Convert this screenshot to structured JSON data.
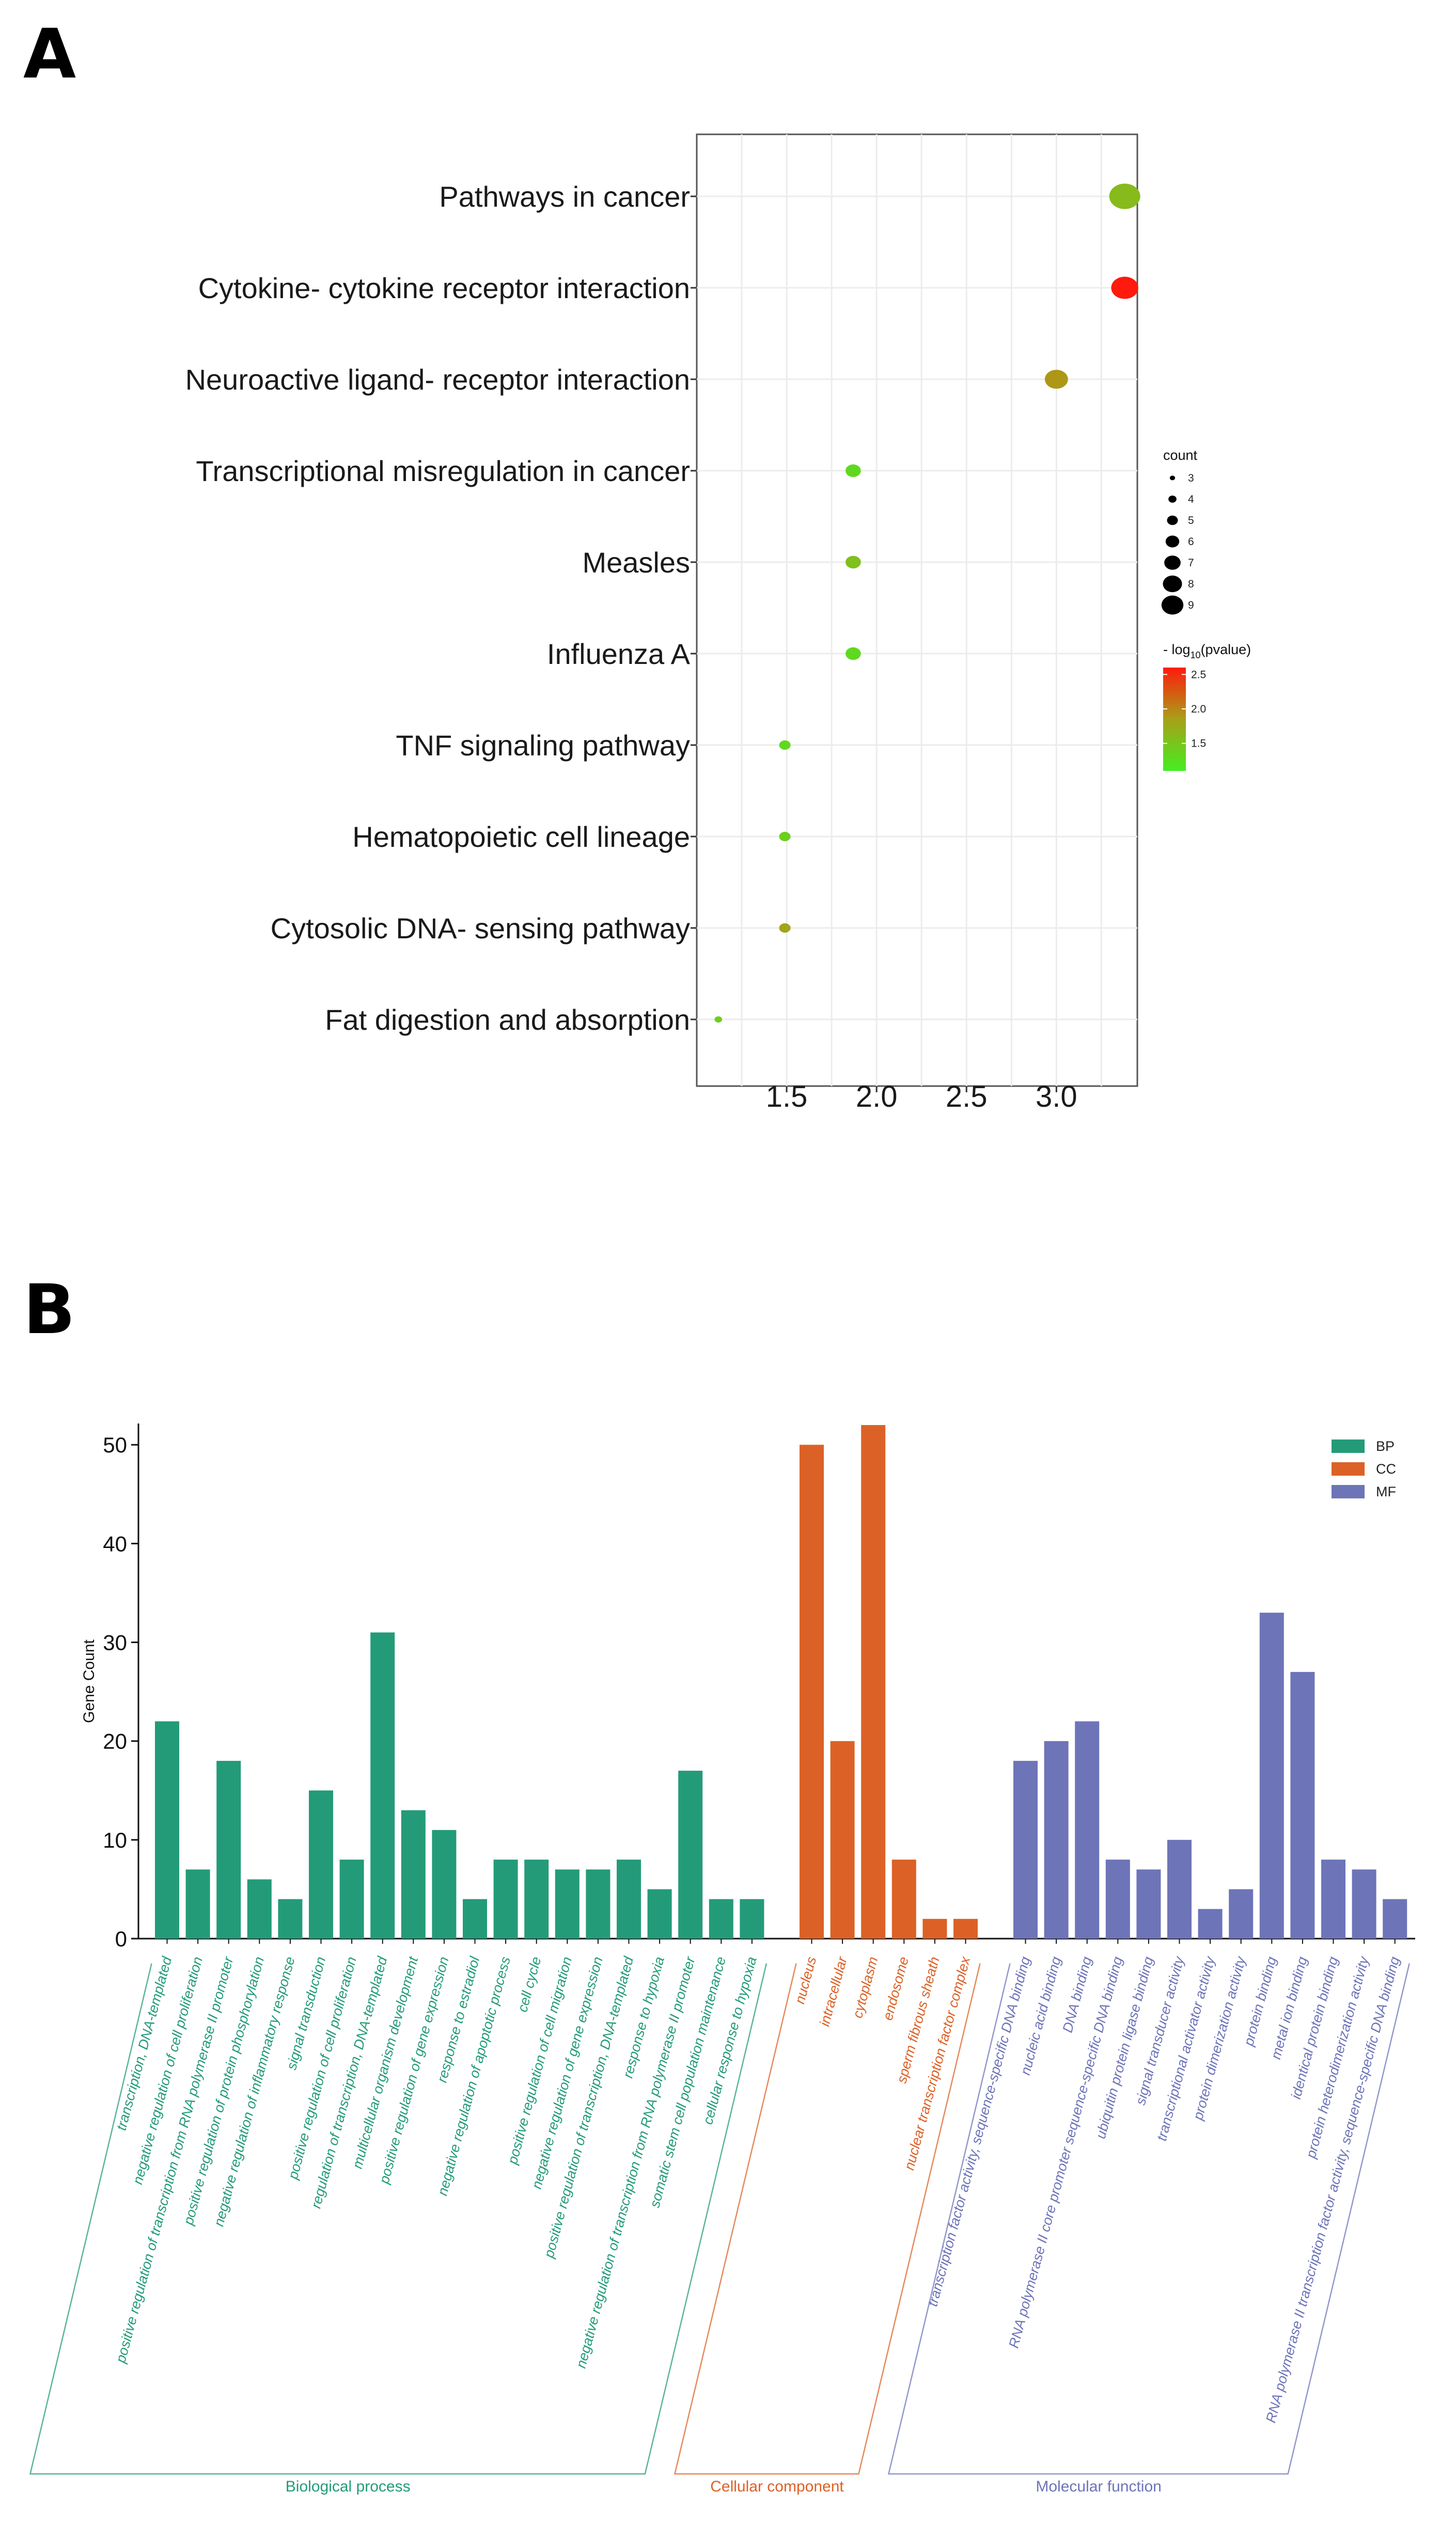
{
  "panels": {
    "a": "A",
    "b": "B"
  },
  "colors": {
    "low": "#44ee22",
    "mid": "#a8a018",
    "high": "#ff1a0d",
    "BP": "#239b79",
    "CC": "#dc6126",
    "MF": "#6d74b8"
  },
  "chart_data": [
    {
      "type": "scatter",
      "title": "",
      "xlabel": "",
      "ylabel": "",
      "xlim": [
        1.0,
        3.45
      ],
      "x_ticks": [
        "1.5",
        "2.0",
        "2.5",
        "3.0"
      ],
      "terms": [
        "Pathways in cancer",
        "Cytokine- cytokine receptor interaction",
        "Neuroactive ligand- receptor interaction",
        "Transcriptional misregulation in cancer",
        "Measles",
        "Influenza A",
        "TNF signaling pathway",
        "Hematopoietic cell lineage",
        "Cytosolic DNA- sensing pathway",
        "Fat digestion and absorption"
      ],
      "x": [
        3.38,
        3.38,
        3.0,
        1.87,
        1.87,
        1.87,
        1.49,
        1.49,
        1.49,
        1.12
      ],
      "count": [
        9,
        8,
        7,
        5,
        5,
        5,
        4,
        4,
        4,
        3
      ],
      "neg_log10_pvalue": [
        1.6,
        2.6,
        1.9,
        1.3,
        1.55,
        1.3,
        1.3,
        1.4,
        1.8,
        1.4
      ],
      "legend": {
        "size_title": "count",
        "size_values": [
          "3",
          "4",
          "5",
          "6",
          "7",
          "8",
          "9"
        ],
        "color_title_prefix": "- log",
        "color_title_sub": "10",
        "color_title_suffix": "(pvalue)",
        "color_ticks": [
          "2.5",
          "2.0",
          "1.5"
        ],
        "color_range": [
          1.1,
          2.6
        ]
      }
    },
    {
      "type": "bar",
      "ylabel": "Gene Count",
      "ylim": [
        0,
        52
      ],
      "y_ticks": [
        "0",
        "10",
        "20",
        "30",
        "40",
        "50"
      ],
      "legend": [
        "BP",
        "CC",
        "MF"
      ],
      "groups": [
        {
          "key": "BP",
          "name": "Biological process",
          "categories": [
            "transcription, DNA-templated",
            "negative regulation of cell proliferation",
            "positive regulation of transcription from RNA polymerase II promoter",
            "positive regulation of protein phosphorylation",
            "negative regulation of inflammatory response",
            "signal transduction",
            "positive regulation of cell proliferation",
            "regulation of transcription, DNA-templated",
            "multicellular organism development",
            "positive regulation of gene expression",
            "response to estradiol",
            "negative regulation of apoptotic process",
            "cell cycle",
            "positive regulation of cell migration",
            "negative regulation of gene expression",
            "positive regulation of transcription, DNA-templated",
            "response to hypoxia",
            "negative regulation of transcription from RNA polymerase II promoter",
            "somatic stem cell population maintenance",
            "cellular response to hypoxia"
          ],
          "values": [
            22,
            7,
            18,
            6,
            4,
            15,
            8,
            31,
            13,
            11,
            4,
            8,
            8,
            7,
            7,
            8,
            5,
            17,
            4,
            4
          ]
        },
        {
          "key": "CC",
          "name": "Cellular component",
          "categories": [
            "nucleus",
            "intracellular",
            "cytoplasm",
            "endosome",
            "sperm fibrous sheath",
            "nuclear transcription factor complex"
          ],
          "values": [
            50,
            20,
            52,
            8,
            2,
            2
          ]
        },
        {
          "key": "MF",
          "name": "Molecular function",
          "categories": [
            "transcription factor activity, sequence-specific DNA binding",
            "nucleic acid binding",
            "DNA binding",
            "RNA polymerase II core promoter sequence-specific DNA binding",
            "ubiquitin protein ligase binding",
            "signal transducer activity",
            "transcriptional activator activity",
            "protein dimerization activity",
            "protein binding",
            "metal ion binding",
            "identical protein binding",
            "protein heterodimerization activity",
            "RNA polymerase II transcription factor activity, sequence-specific DNA binding"
          ],
          "values": [
            18,
            20,
            22,
            8,
            7,
            10,
            3,
            5,
            33,
            27,
            8,
            7,
            4
          ]
        }
      ]
    }
  ]
}
